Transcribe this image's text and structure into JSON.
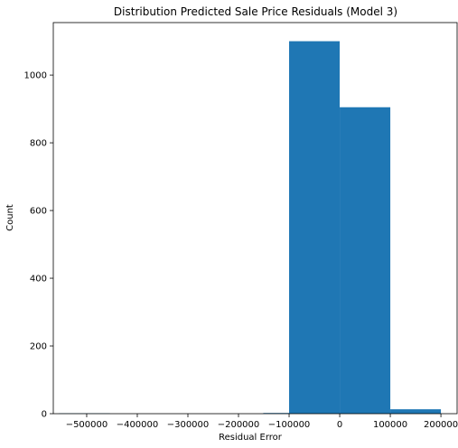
{
  "chart_data": {
    "type": "bar",
    "subtype": "histogram",
    "title": "Distribution Predicted Sale Price Residuals (Model 3)",
    "xlabel": "Residual Error",
    "ylabel": "Count",
    "xlim": [
      -566000,
      232000
    ],
    "ylim": [
      0,
      1155
    ],
    "grid": false,
    "bar_color": "#1f77b4",
    "bins": [
      {
        "x0": -555000,
        "x1": -454000,
        "count": 1
      },
      {
        "x0": -454000,
        "x1": -353000,
        "count": 0
      },
      {
        "x0": -353000,
        "x1": -252000,
        "count": 0
      },
      {
        "x0": -252000,
        "x1": -151000,
        "count": 0
      },
      {
        "x0": -151000,
        "x1": -100000,
        "count": 2
      },
      {
        "x0": -100000,
        "x1": 0,
        "count": 1100
      },
      {
        "x0": 0,
        "x1": 100000,
        "count": 905
      },
      {
        "x0": 100000,
        "x1": 200000,
        "count": 13
      }
    ],
    "x_ticks": [
      {
        "value": -500000,
        "label": "−500000"
      },
      {
        "value": -400000,
        "label": "−400000"
      },
      {
        "value": -300000,
        "label": "−300000"
      },
      {
        "value": -200000,
        "label": "−200000"
      },
      {
        "value": -100000,
        "label": "−100000"
      },
      {
        "value": 0,
        "label": "0"
      },
      {
        "value": 100000,
        "label": "100000"
      },
      {
        "value": 200000,
        "label": "200000"
      }
    ],
    "y_ticks": [
      {
        "value": 0,
        "label": "0"
      },
      {
        "value": 200,
        "label": "200"
      },
      {
        "value": 400,
        "label": "400"
      },
      {
        "value": 600,
        "label": "600"
      },
      {
        "value": 800,
        "label": "800"
      },
      {
        "value": 1000,
        "label": "1000"
      }
    ]
  }
}
